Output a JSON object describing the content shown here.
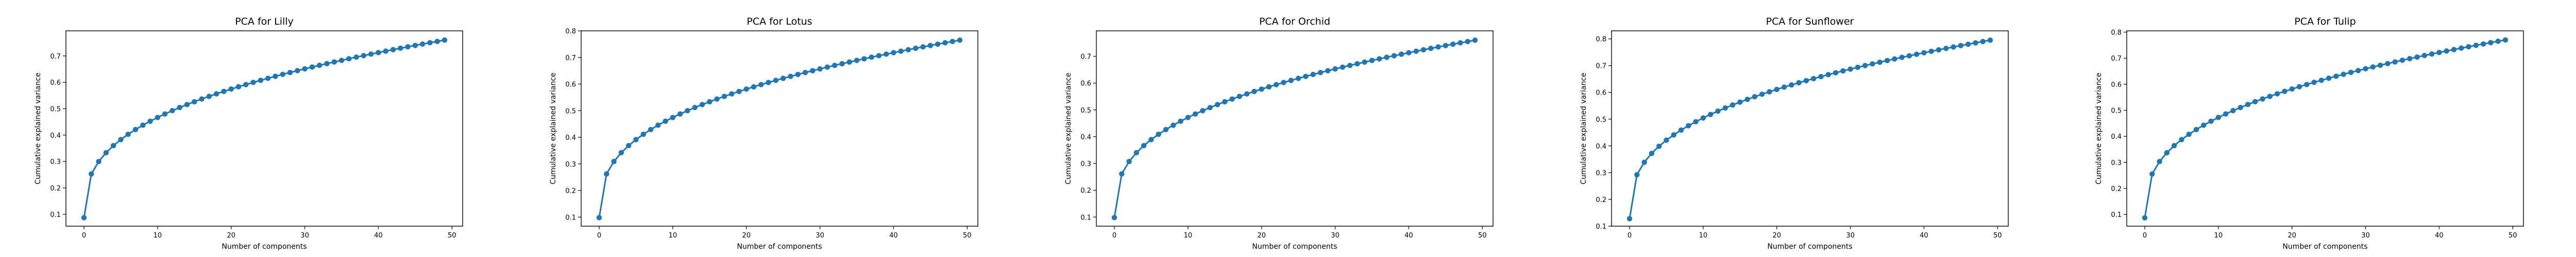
{
  "chart_data": [
    {
      "type": "line",
      "title": "PCA for Lilly",
      "xlabel": "Number of components",
      "ylabel": "Cumulative explained variance",
      "xlim": [
        -2.45,
        51.45
      ],
      "ylim": [
        0.055,
        0.795
      ],
      "xticks": [
        0,
        10,
        20,
        30,
        40,
        50
      ],
      "yticks": [
        0.1,
        0.2,
        0.3,
        0.4,
        0.5,
        0.6,
        0.7
      ],
      "grid": false,
      "color": "#1f77b4",
      "series": [
        {
          "marker": "circle",
          "start": 0.087,
          "end": 0.76
        }
      ]
    },
    {
      "type": "line",
      "title": "PCA for Lotus",
      "xlabel": "Number of components",
      "ylabel": "Cumulative explained variance",
      "xlim": [
        -2.45,
        51.45
      ],
      "ylim": [
        0.066,
        0.8
      ],
      "xticks": [
        0,
        10,
        20,
        30,
        40,
        50
      ],
      "yticks": [
        0.1,
        0.2,
        0.3,
        0.4,
        0.5,
        0.6,
        0.7,
        0.8
      ],
      "grid": false,
      "color": "#1f77b4",
      "series": [
        {
          "marker": "circle",
          "start": 0.098,
          "end": 0.765
        }
      ]
    },
    {
      "type": "line",
      "title": "PCA for Orchid",
      "xlabel": "Number of components",
      "ylabel": "Cumulative explained variance",
      "xlim": [
        -2.45,
        51.45
      ],
      "ylim": [
        0.066,
        0.795
      ],
      "xticks": [
        0,
        10,
        20,
        30,
        40,
        50
      ],
      "yticks": [
        0.1,
        0.2,
        0.3,
        0.4,
        0.5,
        0.6,
        0.7
      ],
      "grid": false,
      "color": "#1f77b4",
      "series": [
        {
          "marker": "circle",
          "start": 0.098,
          "end": 0.76
        }
      ]
    },
    {
      "type": "line",
      "title": "PCA for Sunflower",
      "xlabel": "Number of components",
      "ylabel": "Cumulative explained variance",
      "xlim": [
        -2.45,
        51.45
      ],
      "ylim": [
        0.1,
        0.83
      ],
      "xticks": [
        0,
        10,
        20,
        30,
        40,
        50
      ],
      "yticks": [
        0.1,
        0.2,
        0.3,
        0.4,
        0.5,
        0.6,
        0.7,
        0.8
      ],
      "grid": false,
      "color": "#1f77b4",
      "series": [
        {
          "marker": "circle",
          "start": 0.128,
          "end": 0.795
        }
      ]
    },
    {
      "type": "line",
      "title": "PCA for Tulip",
      "xlabel": "Number of components",
      "ylabel": "Cumulative explained variance",
      "xlim": [
        -2.45,
        51.45
      ],
      "ylim": [
        0.055,
        0.805
      ],
      "xticks": [
        0,
        10,
        20,
        30,
        40,
        50
      ],
      "yticks": [
        0.1,
        0.2,
        0.3,
        0.4,
        0.5,
        0.6,
        0.7,
        0.8
      ],
      "grid": false,
      "color": "#1f77b4",
      "series": [
        {
          "marker": "circle",
          "start": 0.087,
          "end": 0.77
        }
      ]
    }
  ]
}
